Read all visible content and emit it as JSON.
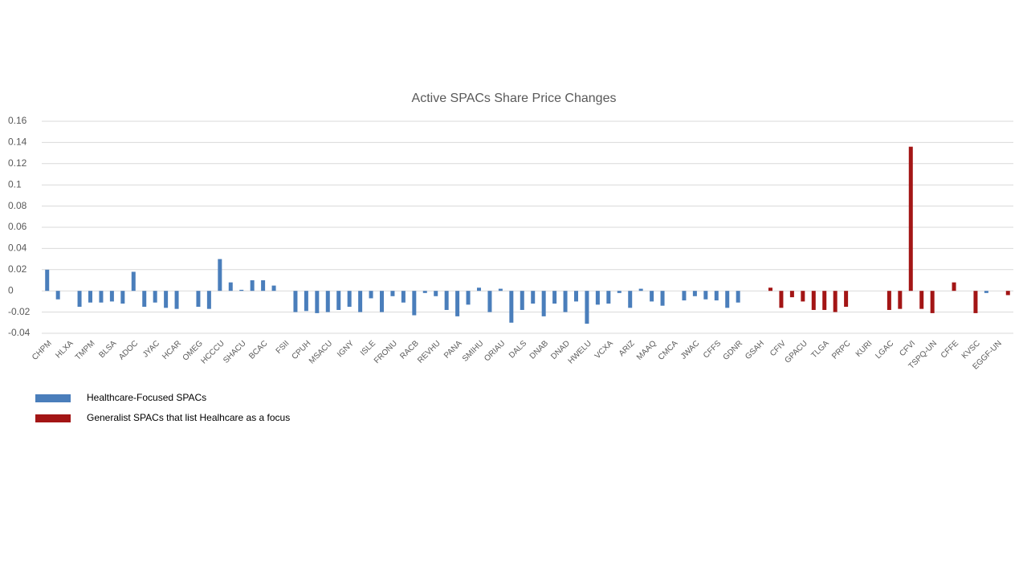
{
  "chart_data": {
    "type": "bar",
    "title": "Active SPACs Share Price Changes",
    "categories": [
      "CHPM",
      null,
      "HLXA",
      null,
      "TMPM",
      null,
      "BLSA",
      null,
      "ADOC",
      null,
      "JYAC",
      null,
      "HCAR",
      null,
      "OMEG",
      null,
      "HCCCU",
      null,
      "SHACU",
      null,
      "BCAC",
      null,
      "FSII",
      null,
      "CPUH",
      null,
      "MSACU",
      null,
      "IGNY",
      null,
      "ISLE",
      null,
      "FRONU",
      null,
      "RACB",
      null,
      "REVHU",
      null,
      "PANA",
      null,
      "SMIHU",
      null,
      "ORIAU",
      null,
      "DALS",
      null,
      "DNAB",
      null,
      "DNAD",
      null,
      "HWELU",
      null,
      "VCXA",
      null,
      "ARIZ",
      null,
      "MAAQ",
      null,
      "CMCA",
      null,
      "JWAC",
      null,
      "CFFS",
      null,
      "GDNR",
      null,
      "GSAH",
      null,
      "CFIV",
      null,
      "GPACU",
      null,
      "TLGA",
      null,
      "PRPC",
      null,
      "KURI",
      null,
      "LGAC",
      null,
      "CFVI",
      null,
      "TSPQ-UN",
      null,
      "CFFE",
      null,
      "KVSC",
      null,
      "EGGF-UN",
      null
    ],
    "series": [
      {
        "name": "Healthcare-Focused SPACs",
        "color": "#4a7ebb",
        "values": [
          0.02,
          -0.008,
          0,
          -0.015,
          -0.011,
          -0.011,
          -0.01,
          -0.012,
          0.018,
          -0.015,
          -0.011,
          -0.016,
          -0.017,
          0,
          -0.015,
          -0.017,
          0.03,
          0.008,
          0.001,
          0.01,
          0.01,
          0.005,
          0,
          -0.02,
          -0.019,
          -0.021,
          -0.02,
          -0.018,
          -0.015,
          -0.02,
          -0.007,
          -0.02,
          -0.005,
          -0.011,
          -0.023,
          -0.002,
          -0.005,
          -0.018,
          -0.024,
          -0.013,
          0.003,
          -0.02,
          0.002,
          -0.03,
          -0.018,
          -0.012,
          -0.024,
          -0.012,
          -0.02,
          -0.01,
          -0.031,
          -0.013,
          -0.012,
          -0.002,
          -0.016,
          0.002,
          -0.01,
          -0.014,
          0,
          -0.009,
          -0.005,
          -0.008,
          -0.009,
          -0.016,
          -0.011,
          0,
          0,
          null,
          null,
          null,
          null,
          null,
          null,
          null,
          null,
          null,
          null,
          null,
          null,
          null,
          null,
          null,
          null,
          null,
          null,
          null,
          null,
          -0.002,
          null,
          null
        ]
      },
      {
        "name": "Generalist SPACs that list Healhcare as a focus",
        "color": "#a31515",
        "values": [
          null,
          null,
          null,
          null,
          null,
          null,
          null,
          null,
          null,
          null,
          null,
          null,
          null,
          null,
          null,
          null,
          null,
          null,
          null,
          null,
          null,
          null,
          null,
          null,
          null,
          null,
          null,
          null,
          null,
          null,
          null,
          null,
          null,
          null,
          null,
          null,
          null,
          null,
          null,
          null,
          null,
          null,
          null,
          null,
          null,
          null,
          null,
          null,
          null,
          null,
          null,
          null,
          null,
          null,
          null,
          null,
          null,
          null,
          null,
          null,
          null,
          null,
          null,
          null,
          null,
          null,
          null,
          0.003,
          -0.016,
          -0.006,
          -0.01,
          -0.018,
          -0.018,
          -0.02,
          -0.015,
          0,
          0,
          0,
          -0.018,
          -0.017,
          0.136,
          -0.017,
          -0.021,
          0,
          0.008,
          0,
          -0.021,
          null,
          0,
          -0.004
        ]
      }
    ],
    "ylim": [
      -0.04,
      0.16
    ],
    "yticks": [
      -0.04,
      -0.02,
      0,
      0.02,
      0.04,
      0.06,
      0.08,
      0.1,
      0.12,
      0.14,
      0.16
    ],
    "grid": true,
    "legend": "bottom-left"
  }
}
